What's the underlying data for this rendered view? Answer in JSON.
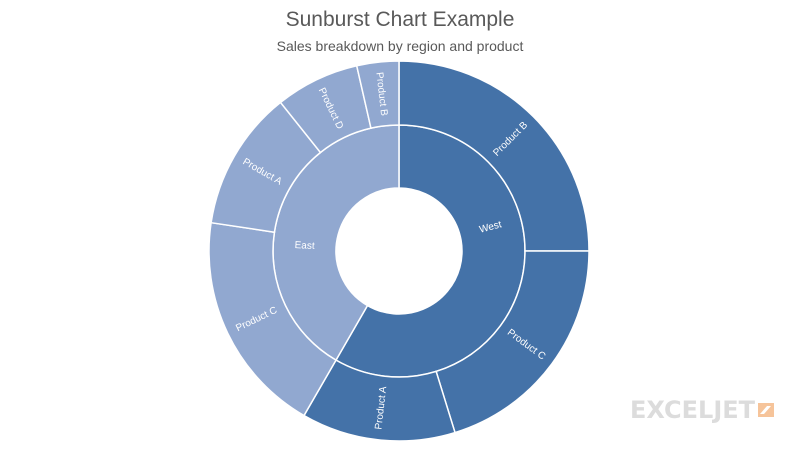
{
  "chart_data": {
    "type": "sunburst",
    "title": "Sunburst Chart Example",
    "subtitle": "Sales breakdown by region and product",
    "groups": [
      {
        "name": "West",
        "color": "#4472a8",
        "children": [
          {
            "name": "Product B",
            "value": 21
          },
          {
            "name": "Product C",
            "value": 17
          },
          {
            "name": "Product A",
            "value": 11
          }
        ]
      },
      {
        "name": "East",
        "color": "#91a8d0",
        "children": [
          {
            "name": "Product C",
            "value": 16
          },
          {
            "name": "Product A",
            "value": 10
          },
          {
            "name": "Product D",
            "value": 6
          },
          {
            "name": "Product B",
            "value": 3
          }
        ]
      }
    ]
  },
  "watermark": {
    "text": "EXCELJET"
  }
}
